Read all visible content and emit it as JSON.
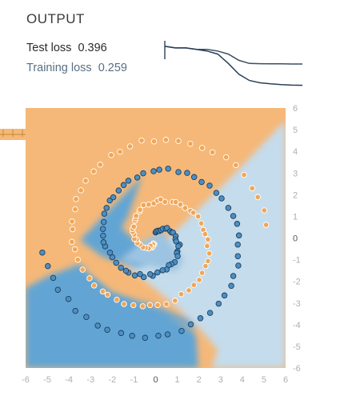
{
  "output": {
    "heading": "OUTPUT",
    "test_loss_label": "Test loss",
    "test_loss_value": "0.396",
    "training_loss_label": "Training loss",
    "training_loss_value": "0.259"
  },
  "colors": {
    "positive": "#4c8fc6",
    "negative": "#f2a655",
    "region_positive_strong": "#62a5d4",
    "region_positive_light": "#c5dcec",
    "region_negative": "#f5b878",
    "test_loss_line": "#3a4f63",
    "training_loss_line": "#2a3f55"
  },
  "chart_data": [
    {
      "type": "line",
      "series": [
        {
          "values": [
            0.51,
            0.5,
            0.5,
            0.49,
            0.49,
            0.48,
            0.46,
            0.42,
            0.4,
            0.398,
            0.397,
            0.397,
            0.396,
            0.396
          ]
        },
        {
          "values": [
            0.51,
            0.5,
            0.5,
            0.49,
            0.48,
            0.46,
            0.4,
            0.33,
            0.29,
            0.275,
            0.268,
            0.263,
            0.26,
            0.259
          ]
        }
      ]
    },
    {
      "type": "scatter",
      "xlim": [
        -6,
        6
      ],
      "ylim": [
        -6,
        6
      ],
      "x_ticks": [
        "-6",
        "-5",
        "-4",
        "-3",
        "-2",
        "-1",
        "0",
        "1",
        "2",
        "3",
        "4",
        "5",
        "6"
      ],
      "y_ticks": [
        "6",
        "5",
        "4",
        "3",
        "2",
        "1",
        "0",
        "-1",
        "-2",
        "-3",
        "-4",
        "-5",
        "-6"
      ]
    }
  ]
}
